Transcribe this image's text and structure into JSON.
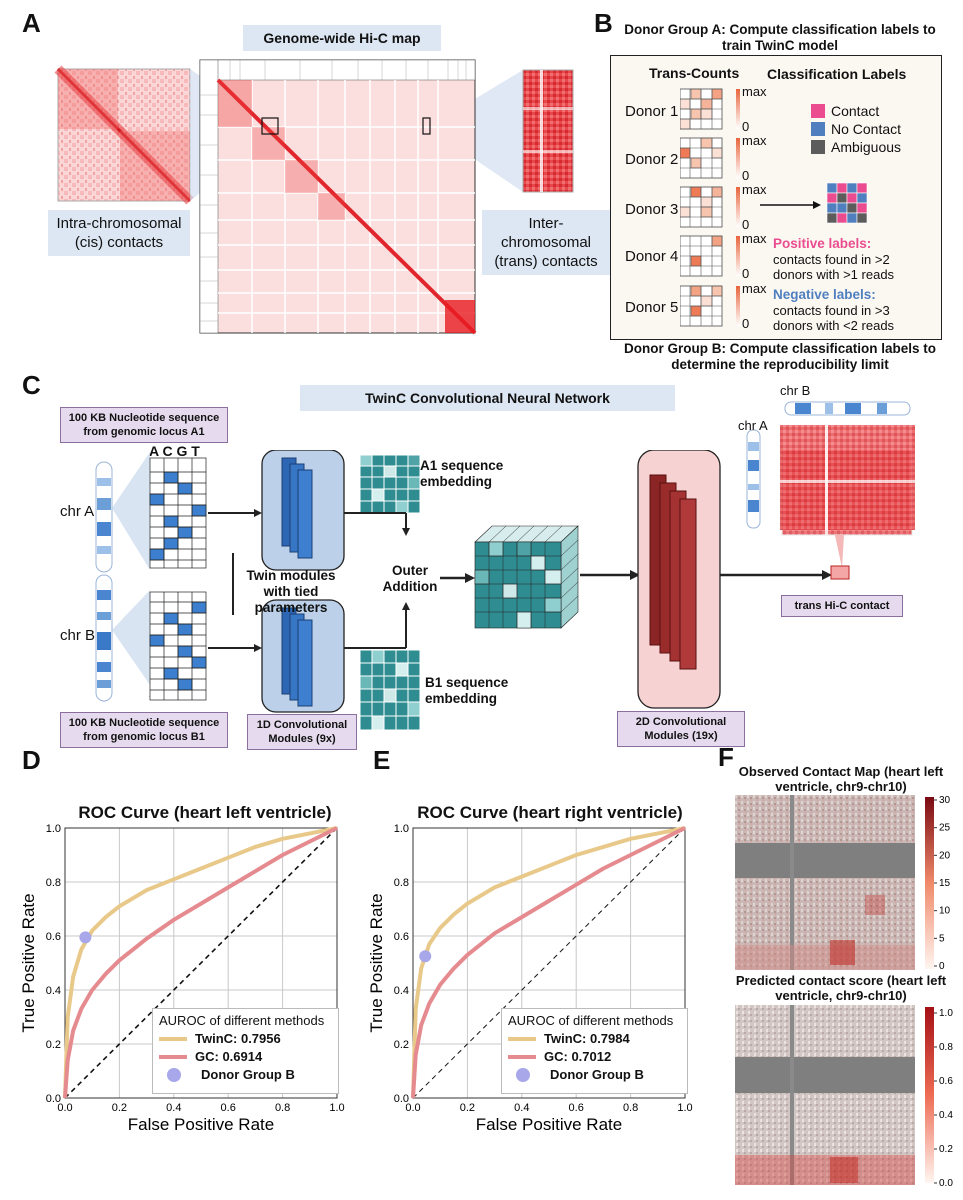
{
  "panels": {
    "A": "A",
    "B": "B",
    "C": "C",
    "D": "D",
    "E": "E",
    "F": "F"
  },
  "panelA": {
    "title": "Genome-wide Hi-C map",
    "cis_label": "Intra-chromosomal (cis) contacts",
    "trans_label": "Inter-chromosomal (trans) contacts"
  },
  "panelB": {
    "title_top": "Donor Group A: Compute classification labels to train TwinC model",
    "col_counts": "Trans-Counts",
    "col_labels": "Classification Labels",
    "donors": [
      "Donor 1",
      "Donor 2",
      "Donor 3",
      "Donor 4",
      "Donor 5"
    ],
    "scale_max": "max",
    "scale_min": "0",
    "legend": [
      "Contact",
      "No Contact",
      "Ambiguous"
    ],
    "positive_title": "Positive labels:",
    "positive_text": "contacts found in >2 donors with >1 reads",
    "negative_title": "Negative labels:",
    "negative_text": "contacts found in >3 donors with <2 reads",
    "title_bottom": "Donor Group B: Compute classification labels to determine the reproducibility limit",
    "colors": {
      "contact": "#ea4c8f",
      "no_contact": "#4f7fbf",
      "ambiguous": "#5c5c5c"
    }
  },
  "panelC": {
    "title": "TwinC Convolutional Neural Network",
    "seq_a": "100 KB Nucleotide sequence from genomic locus A1",
    "seq_b": "100 KB Nucleotide sequence from genomic locus B1",
    "chrA": "chr A",
    "chrB": "chr B",
    "acgt": "A C G T",
    "twin": "Twin modules with tied parameters",
    "conv1d": "1D Convolutional Modules (9x)",
    "a1_embed": "A1 sequence embedding",
    "b1_embed": "B1 sequence embedding",
    "outer": "Outer Addition",
    "conv2d": "2D Convolutional Modules (19x)",
    "out_chrA": "chr A",
    "out_chrB": "chr B",
    "trans_contact": "trans Hi-C contact"
  },
  "chart_data": [
    {
      "type": "line",
      "title": "ROC Curve (heart left ventricle)",
      "xlabel": "False Positive Rate",
      "ylabel": "True Positive Rate",
      "xlim": [
        0,
        1
      ],
      "ylim": [
        0,
        1
      ],
      "ticks": [
        "0.0",
        "0.2",
        "0.4",
        "0.6",
        "0.8",
        "1.0"
      ],
      "grid": true,
      "legend_title": "AUROC of different methods",
      "legend_position": "bottom-right",
      "series": [
        {
          "name": "TwinC: 0.7956",
          "color": "#e8c98a",
          "x": [
            0,
            0.01,
            0.03,
            0.06,
            0.1,
            0.15,
            0.2,
            0.3,
            0.4,
            0.5,
            0.6,
            0.7,
            0.8,
            0.9,
            1
          ],
          "y": [
            0,
            0.3,
            0.45,
            0.55,
            0.62,
            0.67,
            0.71,
            0.77,
            0.81,
            0.85,
            0.89,
            0.93,
            0.96,
            0.98,
            1
          ]
        },
        {
          "name": "GC: 0.6914",
          "color": "#e58a8e",
          "x": [
            0,
            0.01,
            0.03,
            0.06,
            0.1,
            0.15,
            0.2,
            0.3,
            0.4,
            0.5,
            0.6,
            0.7,
            0.8,
            0.9,
            1
          ],
          "y": [
            0,
            0.14,
            0.25,
            0.33,
            0.4,
            0.46,
            0.51,
            0.59,
            0.66,
            0.72,
            0.78,
            0.84,
            0.9,
            0.95,
            1
          ]
        },
        {
          "name": "Donor Group B",
          "color": "#a7a7ea",
          "type": "scatter",
          "x": [
            0.075
          ],
          "y": [
            0.595
          ]
        }
      ],
      "diagonal": true
    },
    {
      "type": "line",
      "title": "ROC Curve (heart right ventricle)",
      "xlabel": "False Positive Rate",
      "ylabel": "True Positive Rate",
      "xlim": [
        0,
        1
      ],
      "ylim": [
        0,
        1
      ],
      "ticks": [
        "0.0",
        "0.2",
        "0.4",
        "0.6",
        "0.8",
        "1.0"
      ],
      "grid": true,
      "legend_title": "AUROC of different methods",
      "legend_position": "bottom-right",
      "series": [
        {
          "name": "TwinC: 0.7984",
          "color": "#e8c98a",
          "x": [
            0,
            0.01,
            0.03,
            0.06,
            0.1,
            0.15,
            0.2,
            0.3,
            0.4,
            0.5,
            0.6,
            0.7,
            0.8,
            0.9,
            1
          ],
          "y": [
            0,
            0.33,
            0.48,
            0.57,
            0.63,
            0.68,
            0.72,
            0.78,
            0.82,
            0.86,
            0.9,
            0.93,
            0.96,
            0.98,
            1
          ]
        },
        {
          "name": "GC: 0.7012",
          "color": "#e58a8e",
          "x": [
            0,
            0.01,
            0.03,
            0.06,
            0.1,
            0.15,
            0.2,
            0.3,
            0.4,
            0.5,
            0.6,
            0.7,
            0.8,
            0.9,
            1
          ],
          "y": [
            0,
            0.16,
            0.27,
            0.35,
            0.42,
            0.48,
            0.53,
            0.61,
            0.67,
            0.73,
            0.79,
            0.85,
            0.9,
            0.95,
            1
          ]
        },
        {
          "name": "Donor Group B",
          "color": "#a7a7ea",
          "type": "scatter",
          "x": [
            0.045
          ],
          "y": [
            0.525
          ]
        }
      ],
      "diagonal": true
    },
    {
      "type": "heatmap",
      "title": "Observed Contact Map (heart left ventricle, chr9-chr10)",
      "colorbar_ticks": [
        "30",
        "25",
        "20",
        "15",
        "10",
        "5",
        "0"
      ]
    },
    {
      "type": "heatmap",
      "title": "Predicted contact score (heart left ventricle, chr9-chr10)",
      "colorbar_ticks": [
        "1.0",
        "0.8",
        "0.6",
        "0.4",
        "0.2",
        "0.0"
      ]
    }
  ]
}
